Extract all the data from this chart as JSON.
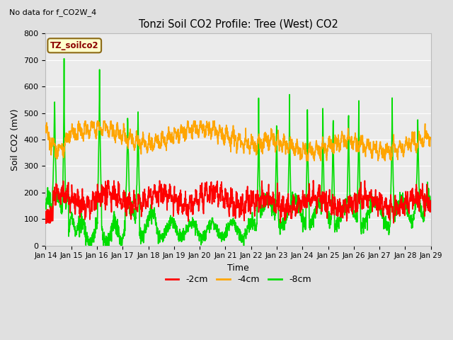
{
  "title": "Tonzi Soil CO2 Profile: Tree (West) CO2",
  "subtitle": "No data for f_CO2W_4",
  "ylabel": "Soil CO2 (mV)",
  "xlabel": "Time",
  "ylim": [
    0,
    800
  ],
  "yticks": [
    0,
    100,
    200,
    300,
    400,
    500,
    600,
    700,
    800
  ],
  "line_colors": {
    "2cm": "#ff0000",
    "4cm": "#ffa500",
    "8cm": "#00dd00"
  },
  "line_widths": {
    "2cm": 1.2,
    "4cm": 1.2,
    "8cm": 1.2
  },
  "legend_labels": [
    "-2cm",
    "-4cm",
    "-8cm"
  ],
  "legend_box_color": "#ffffcc",
  "legend_box_edge": "#8b6914",
  "legend_title": "TZ_soilco2",
  "legend_title_color": "#8b0000",
  "bg_color": "#e0e0e0",
  "plot_bg_color": "#ebebeb",
  "grid_color": "#ffffff",
  "xtick_labels": [
    "Jan 14",
    "Jan 15",
    "Jan 16",
    "Jan 17",
    "Jan 18",
    "Jan 19",
    "Jan 20",
    "Jan 21",
    "Jan 22",
    "Jan 23",
    "Jan 24",
    "Jan 25",
    "Jan 26",
    "Jan 27",
    "Jan 28",
    "Jan 29"
  ]
}
